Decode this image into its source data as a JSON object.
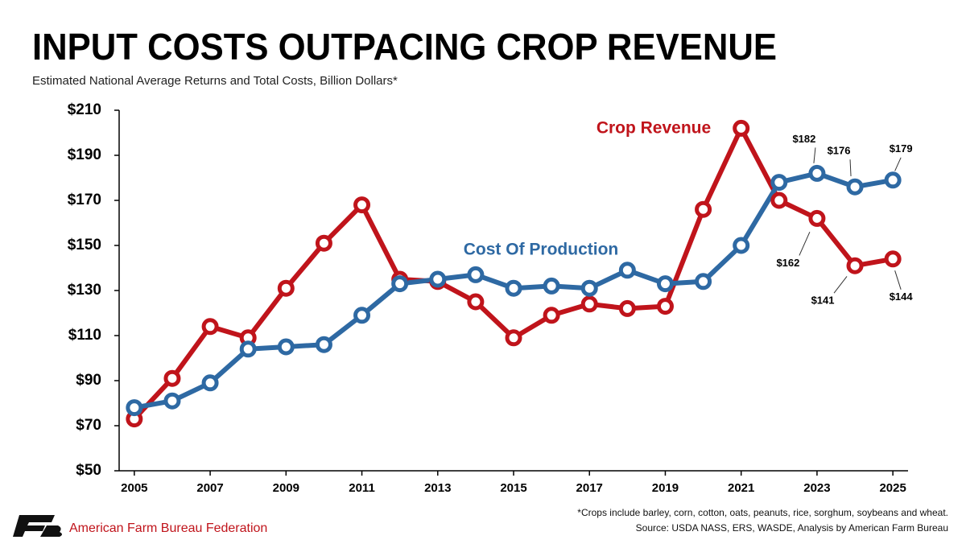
{
  "chart_data": {
    "type": "line",
    "title": "INPUT COSTS OUTPACING CROP REVENUE",
    "subtitle": "Estimated National Average Returns and Total Costs, Billion Dollars*",
    "footnote": "*Crops include barley, corn, cotton, oats, peanuts, rice, sorghum, soybeans and wheat.",
    "source": "Source: USDA NASS, ERS, WASDE, Analysis by American Farm Bureau",
    "organization": "American Farm Bureau Federation",
    "x": [
      2005,
      2006,
      2007,
      2008,
      2009,
      2010,
      2011,
      2012,
      2013,
      2014,
      2015,
      2016,
      2017,
      2018,
      2019,
      2020,
      2021,
      2022,
      2023,
      2024,
      2025
    ],
    "xlim": [
      2004.6,
      2025.4
    ],
    "xticks": [
      2005,
      2007,
      2009,
      2011,
      2013,
      2015,
      2017,
      2019,
      2021,
      2023,
      2025
    ],
    "ylim": [
      50,
      210
    ],
    "yticks": [
      {
        "value": 50,
        "label": "$50"
      },
      {
        "value": 70,
        "label": "$70"
      },
      {
        "value": 90,
        "label": "$90"
      },
      {
        "value": 110,
        "label": "$110"
      },
      {
        "value": 130,
        "label": "$130"
      },
      {
        "value": 150,
        "label": "$150"
      },
      {
        "value": 170,
        "label": "$170"
      },
      {
        "value": 190,
        "label": "$190"
      },
      {
        "value": 210,
        "label": "$210"
      }
    ],
    "grid": false,
    "series": [
      {
        "name": "Crop Revenue",
        "color": "#c0141b",
        "values": [
          73,
          91,
          114,
          109,
          131,
          151,
          168,
          135,
          134,
          125,
          109,
          119,
          124,
          122,
          123,
          166,
          202,
          170,
          162,
          141,
          144
        ],
        "value_labels": [
          null,
          null,
          null,
          null,
          null,
          null,
          null,
          null,
          null,
          null,
          null,
          null,
          null,
          null,
          null,
          null,
          null,
          null,
          "$162",
          "$141",
          "$144"
        ]
      },
      {
        "name": "Cost Of Production",
        "color": "#2e69a3",
        "values": [
          78,
          81,
          89,
          104,
          105,
          106,
          119,
          133,
          135,
          137,
          131,
          132,
          131,
          139,
          133,
          134,
          150,
          178,
          182,
          176,
          179
        ],
        "value_labels": [
          null,
          null,
          null,
          null,
          null,
          null,
          null,
          null,
          null,
          null,
          null,
          null,
          null,
          null,
          null,
          null,
          null,
          null,
          "$182",
          "$176",
          "$179"
        ]
      }
    ]
  }
}
